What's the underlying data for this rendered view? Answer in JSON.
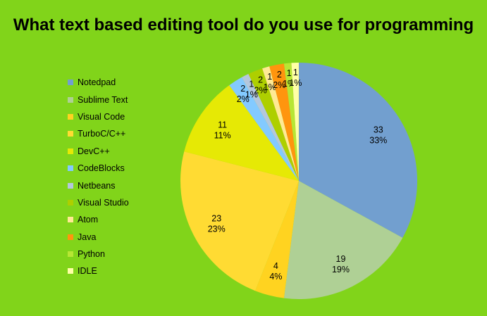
{
  "chart_data": {
    "type": "pie",
    "title": "What text based editing tool do you use for programming",
    "legend_position": "left",
    "slices": [
      {
        "label": "Notedpad",
        "value": 33,
        "percent": "33%",
        "color": "#729fcf"
      },
      {
        "label": "Sublime Text",
        "value": 19,
        "percent": "19%",
        "color": "#afd095"
      },
      {
        "label": "Visual Code",
        "value": 4,
        "percent": "4%",
        "color": "#ffd320"
      },
      {
        "label": "TurboC/C++",
        "value": 23,
        "percent": "23%",
        "color": "#ffdb33"
      },
      {
        "label": "DevC++",
        "value": 11,
        "percent": "11%",
        "color": "#e6e905"
      },
      {
        "label": "CodeBlocks",
        "value": 2,
        "percent": "2%",
        "color": "#83caff"
      },
      {
        "label": "Netbeans",
        "value": 1,
        "percent": "1%",
        "color": "#b4c7dc"
      },
      {
        "label": "Visual Studio",
        "value": 2,
        "percent": "2%",
        "color": "#aecf00"
      },
      {
        "label": "Atom",
        "value": 1,
        "percent": "1%",
        "color": "#ffe994"
      },
      {
        "label": "Java",
        "value": 2,
        "percent": "2%",
        "color": "#ff950e"
      },
      {
        "label": "Python",
        "value": 1,
        "percent": "1%",
        "color": "#b7e634"
      },
      {
        "label": "IDLE",
        "value": 1,
        "percent": "1%",
        "color": "#ffffa6"
      }
    ]
  }
}
